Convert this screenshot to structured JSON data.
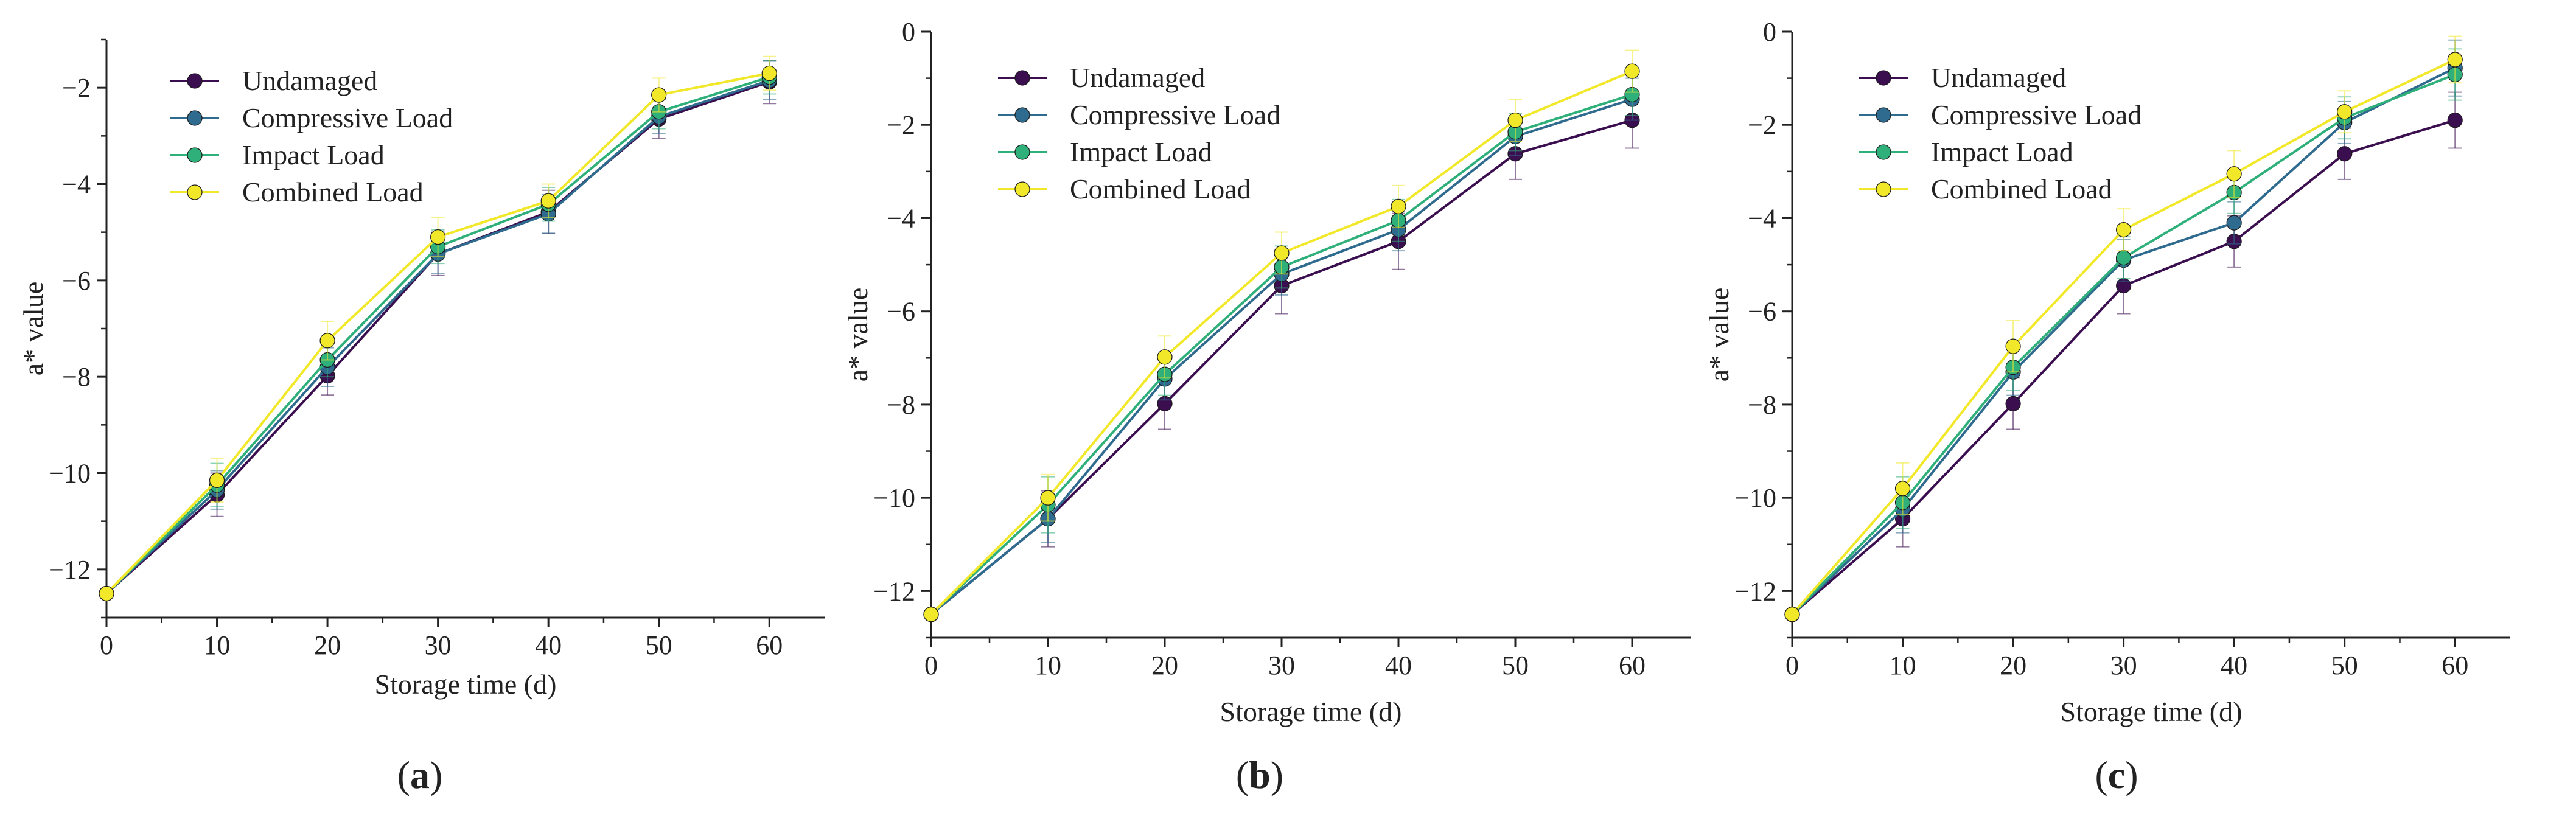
{
  "figure": {
    "panel_labels": [
      "(a)",
      "(b)",
      "(c)"
    ]
  },
  "series_colors": {
    "Undamaged": "#3b0f4f",
    "Compressive Load": "#2f6b8e",
    "Impact Load": "#2fb07a",
    "Combined Load": "#f2e82a"
  },
  "chart_data": [
    {
      "type": "line",
      "panel": "(a)",
      "xlabel": "Storage time (d)",
      "ylabel": "a* value",
      "xlim": [
        0,
        65
      ],
      "ylim": [
        -13,
        -1
      ],
      "xticks": [
        0,
        10,
        20,
        30,
        40,
        50,
        60
      ],
      "yticks": [
        -12,
        -10,
        -8,
        -6,
        -4,
        -2
      ],
      "legend_position": "top-left",
      "x": [
        0,
        10,
        20,
        30,
        40,
        50,
        60
      ],
      "series": [
        {
          "name": "Undamaged",
          "values": [
            -12.5,
            -10.45,
            -7.98,
            -5.45,
            -4.58,
            -2.65,
            -1.88
          ],
          "errors": [
            0,
            0.45,
            0.4,
            0.45,
            0.45,
            0.4,
            0.45
          ]
        },
        {
          "name": "Compressive Load",
          "values": [
            -12.5,
            -10.35,
            -7.8,
            -5.45,
            -4.62,
            -2.6,
            -1.85
          ],
          "errors": [
            0,
            0.4,
            0.4,
            0.4,
            0.4,
            0.35,
            0.4
          ]
        },
        {
          "name": "Impact Load",
          "values": [
            -12.5,
            -10.25,
            -7.65,
            -5.3,
            -4.42,
            -2.5,
            -1.78
          ],
          "errors": [
            0,
            0.45,
            0.35,
            0.35,
            0.35,
            0.35,
            0.35
          ]
        },
        {
          "name": "Combined Load",
          "values": [
            -12.5,
            -10.15,
            -7.25,
            -5.1,
            -4.35,
            -2.15,
            -1.7
          ],
          "errors": [
            0,
            0.45,
            0.4,
            0.4,
            0.35,
            0.35,
            0.35
          ]
        }
      ]
    },
    {
      "type": "line",
      "panel": "(b)",
      "xlabel": "Storage time (d)",
      "ylabel": "a* value",
      "xlim": [
        0,
        65
      ],
      "ylim": [
        -13,
        0
      ],
      "xticks": [
        0,
        10,
        20,
        30,
        40,
        50,
        60
      ],
      "yticks": [
        -12,
        -10,
        -8,
        -6,
        -4,
        -2,
        0
      ],
      "legend_position": "top-left",
      "x": [
        0,
        10,
        20,
        30,
        40,
        50,
        60
      ],
      "series": [
        {
          "name": "Undamaged",
          "values": [
            -12.5,
            -10.45,
            -7.98,
            -5.45,
            -4.5,
            -2.62,
            -1.9
          ],
          "errors": [
            0,
            0.6,
            0.55,
            0.6,
            0.6,
            0.55,
            0.6
          ]
        },
        {
          "name": "Compressive Load",
          "values": [
            -12.5,
            -10.45,
            -7.45,
            -5.2,
            -4.25,
            -2.25,
            -1.45
          ],
          "errors": [
            0,
            0.5,
            0.45,
            0.45,
            0.45,
            0.4,
            0.45
          ]
        },
        {
          "name": "Impact Load",
          "values": [
            -12.5,
            -10.15,
            -7.35,
            -5.05,
            -4.05,
            -2.15,
            -1.35
          ],
          "errors": [
            0,
            0.6,
            0.45,
            0.45,
            0.45,
            0.4,
            0.45
          ]
        },
        {
          "name": "Combined Load",
          "values": [
            -12.5,
            -10.0,
            -6.98,
            -4.75,
            -3.75,
            -1.9,
            -0.85
          ],
          "errors": [
            0,
            0.5,
            0.45,
            0.45,
            0.45,
            0.45,
            0.45
          ]
        }
      ]
    },
    {
      "type": "line",
      "panel": "(c)",
      "xlabel": "Storage time (d)",
      "ylabel": "a* value",
      "xlim": [
        0,
        65
      ],
      "ylim": [
        -13,
        0
      ],
      "xticks": [
        0,
        10,
        20,
        30,
        40,
        50,
        60
      ],
      "yticks": [
        -12,
        -10,
        -8,
        -6,
        -4,
        -2,
        0
      ],
      "legend_position": "top-left",
      "x": [
        0,
        10,
        20,
        30,
        40,
        50,
        60
      ],
      "series": [
        {
          "name": "Undamaged",
          "values": [
            -12.5,
            -10.45,
            -7.98,
            -5.45,
            -4.5,
            -2.62,
            -1.9
          ],
          "errors": [
            0,
            0.6,
            0.55,
            0.6,
            0.55,
            0.55,
            0.6
          ]
        },
        {
          "name": "Compressive Load",
          "values": [
            -12.5,
            -10.25,
            -7.3,
            -4.9,
            -4.1,
            -1.95,
            -0.78
          ],
          "errors": [
            0,
            0.5,
            0.5,
            0.45,
            0.45,
            0.45,
            0.6
          ]
        },
        {
          "name": "Impact Load",
          "values": [
            -12.5,
            -10.1,
            -7.2,
            -4.85,
            -3.45,
            -1.85,
            -0.92
          ],
          "errors": [
            0,
            0.55,
            0.5,
            0.45,
            0.45,
            0.45,
            0.55
          ]
        },
        {
          "name": "Combined Load",
          "values": [
            -12.5,
            -9.8,
            -6.75,
            -4.25,
            -3.05,
            -1.72,
            -0.6
          ],
          "errors": [
            0,
            0.55,
            0.55,
            0.45,
            0.5,
            0.45,
            0.5
          ]
        }
      ]
    }
  ]
}
